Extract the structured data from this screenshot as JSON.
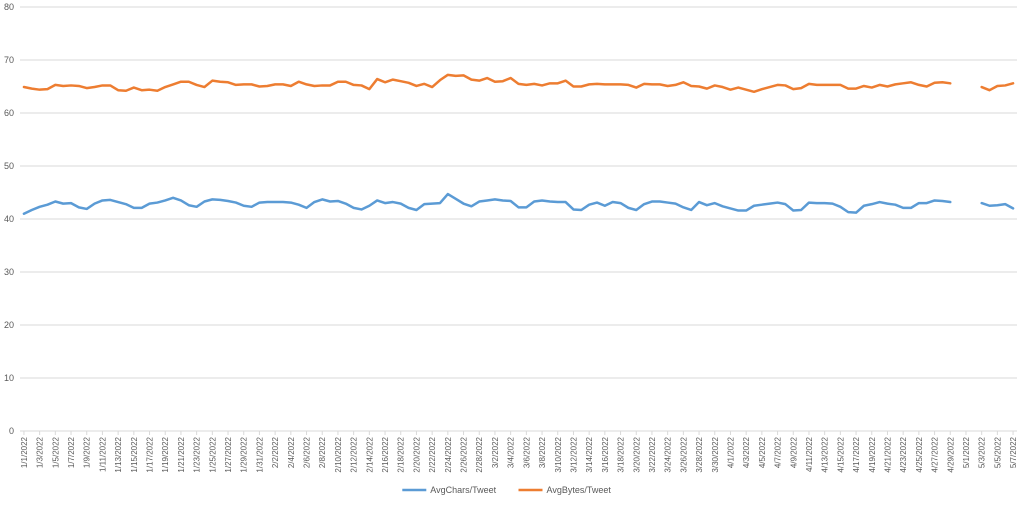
{
  "chart_data": {
    "type": "line",
    "title": "",
    "xlabel": "",
    "ylabel": "",
    "ylim": [
      0,
      80
    ],
    "yticks": [
      0,
      10,
      20,
      30,
      40,
      50,
      60,
      70,
      80
    ],
    "grid": "horizontal",
    "legend_position": "bottom",
    "categories": [
      "1/1/2022",
      "1/2/2022",
      "1/3/2022",
      "1/4/2022",
      "1/5/2022",
      "1/6/2022",
      "1/7/2022",
      "1/8/2022",
      "1/9/2022",
      "1/10/2022",
      "1/11/2022",
      "1/12/2022",
      "1/13/2022",
      "1/14/2022",
      "1/15/2022",
      "1/16/2022",
      "1/17/2022",
      "1/18/2022",
      "1/19/2022",
      "1/20/2022",
      "1/21/2022",
      "1/22/2022",
      "1/23/2022",
      "1/24/2022",
      "1/25/2022",
      "1/26/2022",
      "1/27/2022",
      "1/28/2022",
      "1/29/2022",
      "1/30/2022",
      "1/31/2022",
      "2/1/2022",
      "2/2/2022",
      "2/3/2022",
      "2/4/2022",
      "2/5/2022",
      "2/6/2022",
      "2/7/2022",
      "2/8/2022",
      "2/9/2022",
      "2/10/2022",
      "2/11/2022",
      "2/12/2022",
      "2/13/2022",
      "2/14/2022",
      "2/15/2022",
      "2/16/2022",
      "2/17/2022",
      "2/18/2022",
      "2/19/2022",
      "2/20/2022",
      "2/21/2022",
      "2/22/2022",
      "2/23/2022",
      "2/24/2022",
      "2/25/2022",
      "2/26/2022",
      "2/27/2022",
      "2/28/2022",
      "3/1/2022",
      "3/2/2022",
      "3/3/2022",
      "3/4/2022",
      "3/5/2022",
      "3/6/2022",
      "3/7/2022",
      "3/8/2022",
      "3/9/2022",
      "3/10/2022",
      "3/11/2022",
      "3/12/2022",
      "3/13/2022",
      "3/14/2022",
      "3/15/2022",
      "3/16/2022",
      "3/17/2022",
      "3/18/2022",
      "3/19/2022",
      "3/20/2022",
      "3/21/2022",
      "3/22/2022",
      "3/23/2022",
      "3/24/2022",
      "3/25/2022",
      "3/26/2022",
      "3/27/2022",
      "3/28/2022",
      "3/29/2022",
      "3/30/2022",
      "3/31/2022",
      "4/1/2022",
      "4/2/2022",
      "4/3/2022",
      "4/4/2022",
      "4/5/2022",
      "4/6/2022",
      "4/7/2022",
      "4/8/2022",
      "4/9/2022",
      "4/10/2022",
      "4/11/2022",
      "4/12/2022",
      "4/13/2022",
      "4/14/2022",
      "4/15/2022",
      "4/16/2022",
      "4/17/2022",
      "4/18/2022",
      "4/19/2022",
      "4/20/2022",
      "4/21/2022",
      "4/22/2022",
      "4/23/2022",
      "4/24/2022",
      "4/25/2022",
      "4/26/2022",
      "4/27/2022",
      "4/28/2022",
      "4/29/2022",
      "4/30/2022",
      "5/1/2022",
      "5/2/2022",
      "5/3/2022",
      "5/4/2022",
      "5/5/2022",
      "5/6/2022",
      "5/7/2022"
    ],
    "series": [
      {
        "name": "AvgChars/Tweet",
        "color": "#5B9BD5",
        "values": [
          41.0,
          41.7,
          42.3,
          42.7,
          43.3,
          42.9,
          43.0,
          42.2,
          41.9,
          42.9,
          43.5,
          43.6,
          43.2,
          42.8,
          42.1,
          42.1,
          42.9,
          43.1,
          43.5,
          44.0,
          43.5,
          42.6,
          42.3,
          43.3,
          43.7,
          43.6,
          43.4,
          43.1,
          42.5,
          42.3,
          43.1,
          43.2,
          43.2,
          43.2,
          43.1,
          42.7,
          42.1,
          43.2,
          43.7,
          43.3,
          43.4,
          42.9,
          42.1,
          41.8,
          42.5,
          43.5,
          43.0,
          43.2,
          42.9,
          42.1,
          41.7,
          42.8,
          42.9,
          43.0,
          44.7,
          43.8,
          42.9,
          42.4,
          43.3,
          43.5,
          43.7,
          43.5,
          43.4,
          42.2,
          42.2,
          43.3,
          43.5,
          43.3,
          43.2,
          43.2,
          41.8,
          41.7,
          42.7,
          43.1,
          42.5,
          43.2,
          43.0,
          42.1,
          41.7,
          42.8,
          43.3,
          43.3,
          43.1,
          42.9,
          42.2,
          41.7,
          43.2,
          42.6,
          43.0,
          42.4,
          42.0,
          41.6,
          41.6,
          42.5,
          42.7,
          42.9,
          43.1,
          42.8,
          41.6,
          41.7,
          43.1,
          43.0,
          43.0,
          42.9,
          42.3,
          41.3,
          41.2,
          42.5,
          42.8,
          43.2,
          42.9,
          42.7,
          42.1,
          42.1,
          43.0,
          43.0,
          43.5,
          43.4,
          43.2,
          null,
          null,
          null,
          43.0,
          42.5,
          42.6,
          42.8,
          42.0
        ]
      },
      {
        "name": "AvgBytes/Tweet",
        "color": "#ED7D31",
        "values": [
          64.9,
          64.6,
          64.4,
          64.5,
          65.3,
          65.1,
          65.2,
          65.1,
          64.7,
          64.9,
          65.2,
          65.2,
          64.3,
          64.2,
          64.8,
          64.3,
          64.4,
          64.2,
          64.9,
          65.4,
          65.9,
          65.9,
          65.3,
          64.9,
          66.1,
          65.9,
          65.8,
          65.3,
          65.4,
          65.4,
          65.0,
          65.1,
          65.4,
          65.4,
          65.1,
          65.9,
          65.4,
          65.1,
          65.2,
          65.2,
          65.9,
          65.9,
          65.3,
          65.2,
          64.5,
          66.4,
          65.8,
          66.3,
          66.0,
          65.7,
          65.1,
          65.5,
          64.9,
          66.2,
          67.2,
          67.0,
          67.1,
          66.3,
          66.1,
          66.6,
          65.9,
          66.0,
          66.6,
          65.5,
          65.3,
          65.5,
          65.2,
          65.6,
          65.6,
          66.1,
          65.0,
          65.0,
          65.4,
          65.5,
          65.4,
          65.4,
          65.4,
          65.3,
          64.8,
          65.5,
          65.4,
          65.4,
          65.1,
          65.3,
          65.8,
          65.1,
          65.0,
          64.6,
          65.2,
          64.9,
          64.4,
          64.8,
          64.4,
          64.0,
          64.5,
          64.9,
          65.3,
          65.2,
          64.5,
          64.7,
          65.5,
          65.3,
          65.3,
          65.3,
          65.3,
          64.6,
          64.6,
          65.1,
          64.8,
          65.3,
          65.0,
          65.4,
          65.6,
          65.8,
          65.3,
          65.0,
          65.7,
          65.8,
          65.6,
          null,
          null,
          null,
          64.9,
          64.3,
          65.1,
          65.2,
          65.6
        ]
      }
    ]
  }
}
